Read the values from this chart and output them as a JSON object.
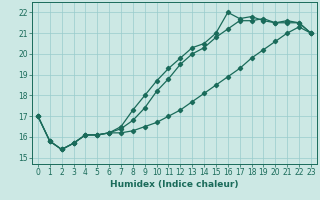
{
  "xlabel": "Humidex (Indice chaleur)",
  "bg_color": "#cce8e4",
  "grid_color": "#99cccc",
  "line_color": "#1a6b5a",
  "xlim": [
    -0.5,
    23.5
  ],
  "ylim": [
    14.7,
    22.5
  ],
  "xticks": [
    0,
    1,
    2,
    3,
    4,
    5,
    6,
    7,
    8,
    9,
    10,
    11,
    12,
    13,
    14,
    15,
    16,
    17,
    18,
    19,
    20,
    21,
    22,
    23
  ],
  "yticks": [
    15,
    16,
    17,
    18,
    19,
    20,
    21,
    22
  ],
  "line1_x": [
    0,
    1,
    2,
    3,
    4,
    5,
    6,
    7,
    8,
    9,
    10,
    11,
    12,
    13,
    14,
    15,
    16,
    17,
    18,
    19,
    20,
    21,
    22,
    23
  ],
  "line1_y": [
    17.0,
    15.8,
    15.4,
    15.7,
    16.1,
    16.1,
    16.2,
    16.2,
    16.3,
    16.5,
    16.7,
    17.0,
    17.3,
    17.7,
    18.1,
    18.5,
    18.9,
    19.3,
    19.8,
    20.2,
    20.6,
    21.0,
    21.3,
    21.0
  ],
  "line2_x": [
    0,
    1,
    2,
    3,
    4,
    5,
    6,
    7,
    8,
    9,
    10,
    11,
    12,
    13,
    14,
    15,
    16,
    17,
    18,
    19,
    20,
    21,
    22,
    23
  ],
  "line2_y": [
    17.0,
    15.8,
    15.4,
    15.7,
    16.1,
    16.1,
    16.2,
    16.4,
    16.8,
    17.4,
    18.2,
    18.8,
    19.5,
    20.0,
    20.3,
    20.8,
    21.2,
    21.6,
    21.6,
    21.7,
    21.5,
    21.6,
    21.5,
    21.0
  ],
  "line3_x": [
    0,
    1,
    2,
    3,
    4,
    5,
    6,
    7,
    8,
    9,
    10,
    11,
    12,
    13,
    14,
    15,
    16,
    17,
    18,
    19,
    20,
    21,
    22,
    23
  ],
  "line3_y": [
    17.0,
    15.8,
    15.4,
    15.7,
    16.1,
    16.1,
    16.2,
    16.5,
    17.3,
    18.0,
    18.7,
    19.3,
    19.8,
    20.3,
    20.5,
    21.0,
    22.0,
    21.7,
    21.8,
    21.6,
    21.5,
    21.5,
    21.5,
    21.0
  ],
  "marker": "D",
  "markersize": 2.2,
  "linewidth": 0.9,
  "xlabel_fontsize": 6.5,
  "tick_fontsize": 5.5
}
